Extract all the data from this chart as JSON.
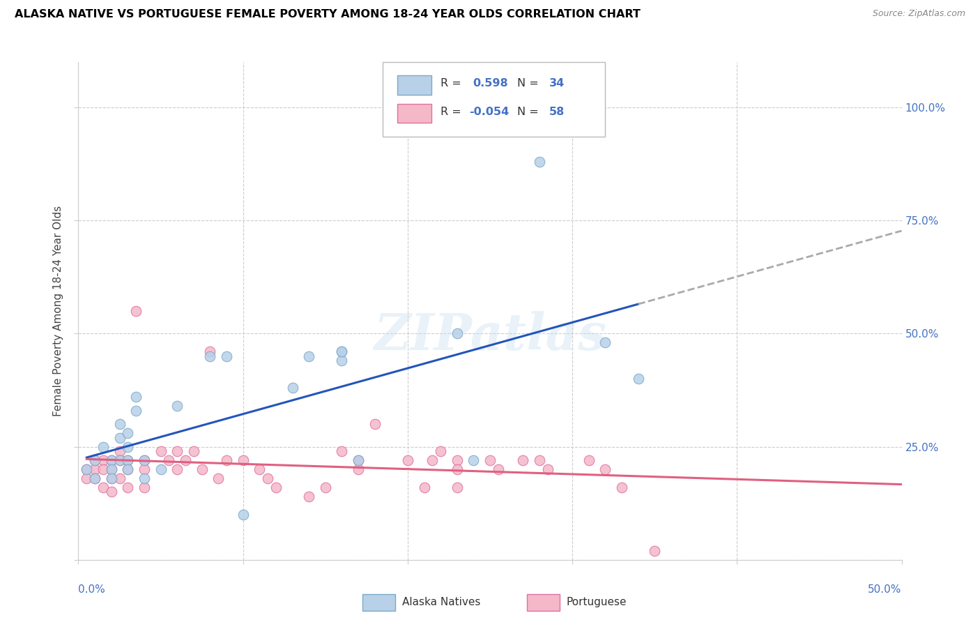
{
  "title": "ALASKA NATIVE VS PORTUGUESE FEMALE POVERTY AMONG 18-24 YEAR OLDS CORRELATION CHART",
  "source": "Source: ZipAtlas.com",
  "ylabel": "Female Poverty Among 18-24 Year Olds",
  "ylabel_right_ticks": [
    "100.0%",
    "75.0%",
    "50.0%",
    "25.0%"
  ],
  "ylabel_right_vals": [
    1.0,
    0.75,
    0.5,
    0.25
  ],
  "xlim": [
    0.0,
    0.5
  ],
  "ylim": [
    0.0,
    1.1
  ],
  "alaska_color": "#b8d0e8",
  "alaska_edge": "#7aaac8",
  "portuguese_color": "#f4b8c8",
  "portuguese_edge": "#e070a0",
  "trend_alaska_color": "#2255bb",
  "trend_portuguese_color": "#e06080",
  "watermark": "ZIPatlas",
  "alaska_x": [
    0.005,
    0.01,
    0.01,
    0.015,
    0.02,
    0.02,
    0.02,
    0.025,
    0.025,
    0.025,
    0.03,
    0.03,
    0.03,
    0.03,
    0.035,
    0.035,
    0.04,
    0.04,
    0.05,
    0.06,
    0.08,
    0.09,
    0.1,
    0.13,
    0.14,
    0.16,
    0.16,
    0.16,
    0.17,
    0.23,
    0.24,
    0.28,
    0.32,
    0.34
  ],
  "alaska_y": [
    0.2,
    0.22,
    0.18,
    0.25,
    0.22,
    0.2,
    0.18,
    0.3,
    0.27,
    0.22,
    0.28,
    0.25,
    0.22,
    0.2,
    0.36,
    0.33,
    0.22,
    0.18,
    0.2,
    0.34,
    0.45,
    0.45,
    0.1,
    0.38,
    0.45,
    0.44,
    0.46,
    0.46,
    0.22,
    0.5,
    0.22,
    0.88,
    0.48,
    0.4
  ],
  "portuguese_x": [
    0.005,
    0.005,
    0.01,
    0.01,
    0.01,
    0.015,
    0.015,
    0.015,
    0.02,
    0.02,
    0.02,
    0.02,
    0.025,
    0.025,
    0.025,
    0.03,
    0.03,
    0.03,
    0.035,
    0.04,
    0.04,
    0.04,
    0.05,
    0.055,
    0.06,
    0.06,
    0.065,
    0.07,
    0.075,
    0.08,
    0.085,
    0.09,
    0.1,
    0.11,
    0.115,
    0.12,
    0.14,
    0.15,
    0.16,
    0.17,
    0.17,
    0.18,
    0.2,
    0.21,
    0.215,
    0.22,
    0.23,
    0.23,
    0.23,
    0.25,
    0.255,
    0.27,
    0.28,
    0.285,
    0.31,
    0.32,
    0.33,
    0.35
  ],
  "portuguese_y": [
    0.2,
    0.18,
    0.22,
    0.2,
    0.18,
    0.22,
    0.2,
    0.16,
    0.22,
    0.2,
    0.18,
    0.15,
    0.24,
    0.22,
    0.18,
    0.22,
    0.2,
    0.16,
    0.55,
    0.22,
    0.2,
    0.16,
    0.24,
    0.22,
    0.24,
    0.2,
    0.22,
    0.24,
    0.2,
    0.46,
    0.18,
    0.22,
    0.22,
    0.2,
    0.18,
    0.16,
    0.14,
    0.16,
    0.24,
    0.22,
    0.2,
    0.3,
    0.22,
    0.16,
    0.22,
    0.24,
    0.22,
    0.2,
    0.16,
    0.22,
    0.2,
    0.22,
    0.22,
    0.2,
    0.22,
    0.2,
    0.16,
    0.02
  ]
}
